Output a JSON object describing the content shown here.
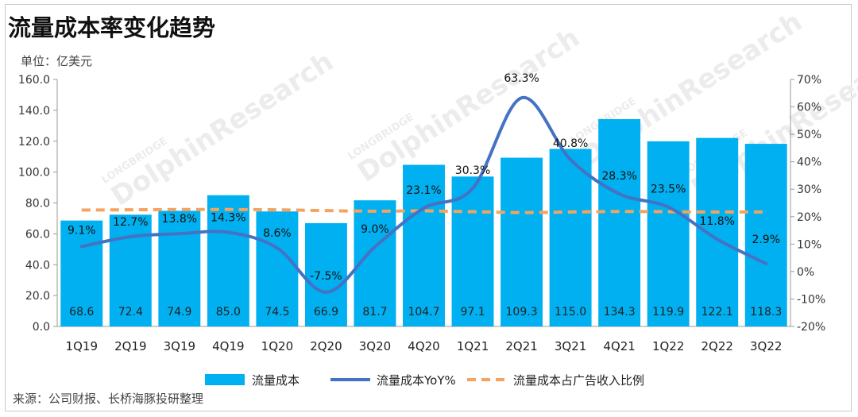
{
  "title": "流量成本率变化趋势",
  "unit_label": "单位：亿美元",
  "source": "来源：公司财报、长桥海豚投研整理",
  "watermark": {
    "line1": "LONGBRIDGE",
    "line2": "DolphinResearch"
  },
  "colors": {
    "bar": "#00b0f0",
    "yoy_line": "#4472c4",
    "ratio_line": "#f4a460"
  },
  "chart_data": {
    "type": "bar",
    "categories": [
      "1Q19",
      "2Q19",
      "3Q19",
      "4Q19",
      "1Q20",
      "2Q20",
      "3Q20",
      "4Q20",
      "1Q21",
      "2Q21",
      "3Q21",
      "4Q21",
      "1Q22",
      "2Q22",
      "3Q22"
    ],
    "series": [
      {
        "name": "流量成本",
        "type": "bar",
        "axis": "left",
        "values": [
          68.6,
          72.4,
          74.9,
          85.0,
          74.5,
          66.9,
          81.7,
          104.7,
          97.1,
          109.3,
          115.0,
          134.3,
          119.9,
          122.1,
          118.3
        ],
        "labels": [
          "68.6",
          "72.4",
          "74.9",
          "85.0",
          "74.5",
          "66.9",
          "81.7",
          "104.7",
          "97.1",
          "109.3",
          "115.0",
          "134.3",
          "119.9",
          "122.1",
          "118.3"
        ]
      },
      {
        "name": "流量成本YoY%",
        "type": "line",
        "axis": "right",
        "values": [
          9.1,
          12.7,
          13.8,
          14.3,
          8.6,
          -7.5,
          9.0,
          23.1,
          30.3,
          63.3,
          40.8,
          28.3,
          23.5,
          11.8,
          2.9
        ],
        "labels": [
          "9.1%",
          "12.7%",
          "13.8%",
          "14.3%",
          "8.6%",
          "-7.5%",
          "9.0%",
          "23.1%",
          "30.3%",
          "63.3%",
          "40.8%",
          "28.3%",
          "23.5%",
          "11.8%",
          "2.9%"
        ]
      },
      {
        "name": "流量成本占广告收入比例",
        "type": "line",
        "style": "dashed",
        "axis": "right",
        "values": [
          22.4,
          22.5,
          22.6,
          22.6,
          22.5,
          22.2,
          22.0,
          22.1,
          21.8,
          21.5,
          21.7,
          21.9,
          21.8,
          21.7,
          21.7
        ]
      }
    ],
    "left_axis": {
      "ylim": [
        0,
        160
      ],
      "ticks": [
        "0.0",
        "20.0",
        "40.0",
        "60.0",
        "80.0",
        "100.0",
        "120.0",
        "140.0",
        "160.0"
      ]
    },
    "right_axis": {
      "ylim": [
        -20,
        70
      ],
      "ticks": [
        "-20%",
        "-10%",
        "0%",
        "10%",
        "20%",
        "30%",
        "40%",
        "50%",
        "60%",
        "70%"
      ]
    },
    "legend_position": "bottom",
    "grid": false
  }
}
